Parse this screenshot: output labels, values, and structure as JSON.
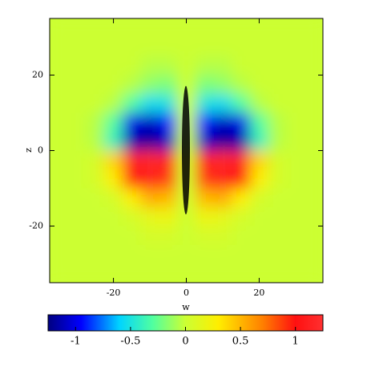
{
  "chart_data": {
    "type": "contour",
    "xlabel": "w",
    "ylabel": "z",
    "xlim": [
      -37.5,
      37.5
    ],
    "ylim": [
      -35,
      35
    ],
    "xticks": [
      -20,
      0,
      20
    ],
    "yticks": [
      -20,
      0,
      20
    ],
    "x": [
      -35,
      -30,
      -25,
      -20,
      -15,
      -10,
      -5,
      0,
      5,
      10,
      15,
      20,
      25,
      30,
      35
    ],
    "y": [
      32.5,
      27.5,
      22.5,
      17.5,
      12.5,
      7.5,
      2.5,
      -2.5,
      -7.5,
      -12.5,
      -17.5,
      -22.5,
      -27.5,
      -32.5
    ],
    "z": [
      [
        0,
        0,
        0,
        0,
        0,
        0,
        0,
        0,
        0,
        0,
        0,
        0,
        0,
        0,
        0
      ],
      [
        0,
        0,
        0,
        0,
        0,
        0,
        0,
        0,
        0,
        0,
        0,
        0,
        0,
        0,
        0
      ],
      [
        0,
        0,
        0,
        0,
        0,
        -0.05,
        -0.05,
        0,
        -0.05,
        -0.05,
        0,
        0,
        0,
        0,
        0
      ],
      [
        0,
        0,
        0,
        0,
        -0.05,
        -0.15,
        -0.2,
        0,
        -0.2,
        -0.15,
        -0.05,
        0,
        0,
        0,
        0
      ],
      [
        0,
        0,
        0,
        -0.05,
        -0.3,
        -0.55,
        -0.5,
        0,
        -0.5,
        -0.55,
        -0.3,
        -0.05,
        0,
        0,
        0
      ],
      [
        0,
        0,
        -0.05,
        -0.3,
        -1,
        -1.1,
        -0.9,
        0,
        -0.9,
        -1.1,
        -1,
        -0.3,
        -0.05,
        0,
        0
      ],
      [
        0,
        0,
        -0.05,
        -0.4,
        -1.15,
        -1.2,
        -1.1,
        0,
        -1.1,
        -1.2,
        -1.15,
        -0.4,
        -0.05,
        0,
        0
      ],
      [
        0,
        0,
        0.05,
        0.4,
        1.15,
        1.2,
        1.1,
        0,
        1.1,
        1.2,
        1.15,
        0.4,
        0.05,
        0,
        0
      ],
      [
        0,
        0,
        0.05,
        0.3,
        1,
        1.1,
        0.9,
        0,
        0.9,
        1.1,
        1,
        0.3,
        0.05,
        0,
        0
      ],
      [
        0,
        0,
        0,
        0.05,
        0.3,
        0.55,
        0.5,
        0,
        0.5,
        0.55,
        0.3,
        0.05,
        0,
        0,
        0
      ],
      [
        0,
        0,
        0,
        0,
        0.05,
        0.15,
        0.2,
        0,
        0.2,
        0.15,
        0.05,
        0,
        0,
        0,
        0
      ],
      [
        0,
        0,
        0,
        0,
        0,
        0.05,
        0.05,
        0,
        0.05,
        0.05,
        0,
        0,
        0,
        0,
        0
      ],
      [
        0,
        0,
        0,
        0,
        0,
        0,
        0,
        0,
        0,
        0,
        0,
        0,
        0,
        0,
        0
      ],
      [
        0,
        0,
        0,
        0,
        0,
        0,
        0,
        0,
        0,
        0,
        0,
        0,
        0,
        0,
        0
      ]
    ],
    "clim": [
      -1.25,
      1.25
    ],
    "cticks": [
      -1,
      -0.5,
      0,
      0.5,
      1
    ],
    "colorscale": [
      [
        -1.25,
        "#000080"
      ],
      [
        -0.95,
        "#0000ff"
      ],
      [
        -0.6,
        "#00d4ff"
      ],
      [
        -0.3,
        "#50ffa0"
      ],
      [
        0,
        "#ccff33"
      ],
      [
        0.3,
        "#ffee00"
      ],
      [
        0.7,
        "#ff8000"
      ],
      [
        1.0,
        "#ff1010"
      ],
      [
        1.25,
        "#ff3030"
      ]
    ]
  }
}
